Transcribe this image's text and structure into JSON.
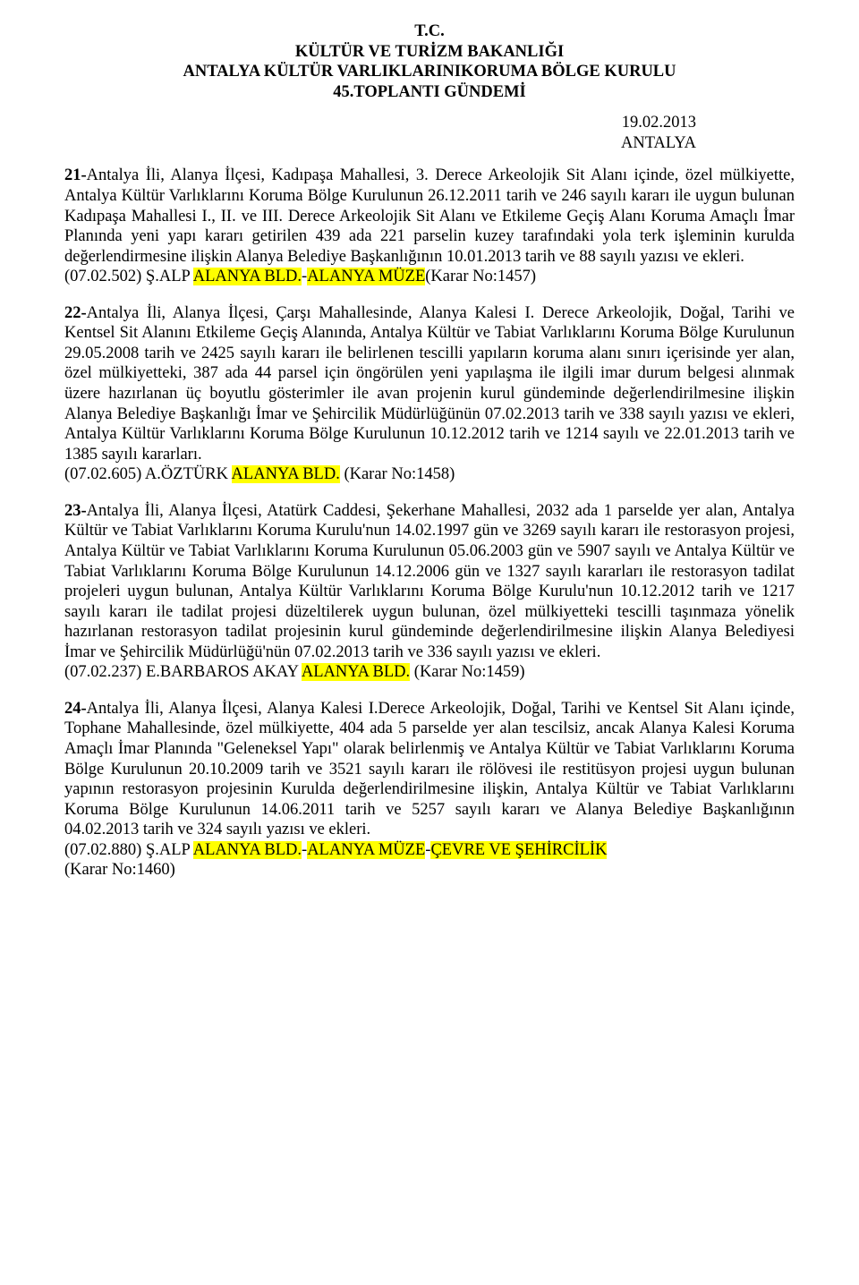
{
  "colors": {
    "highlight": "#ffff00",
    "text": "#000000",
    "background": "#ffffff"
  },
  "typography": {
    "font_family": "Times New Roman",
    "base_fontsize_pt": 14,
    "line_height": 1.22
  },
  "header": {
    "line1": "T.C.",
    "line2": "KÜLTÜR VE TURİZM BAKANLIĞI",
    "line3": "ANTALYA KÜLTÜR VARLIKLARINIKORUMA BÖLGE KURULU",
    "line4": "45.TOPLANTI GÜNDEMİ"
  },
  "date": {
    "line1": "19.02.2013",
    "line2": "ANTALYA"
  },
  "items": {
    "i21": {
      "lead": "21-",
      "body": "Antalya İli, Alanya İlçesi, Kadıpaşa Mahallesi, 3. Derece Arkeolojik Sit Alanı içinde, özel mülkiyette, Antalya Kültür Varlıklarını Koruma Bölge Kurulunun 26.12.2011 tarih ve 246 sayılı kararı ile uygun bulunan Kadıpaşa Mahallesi I., II. ve III. Derece Arkeolojik Sit Alanı ve Etkileme Geçiş Alanı Koruma Amaçlı İmar Planında yeni yapı kararı getirilen 439 ada 221 parselin kuzey tarafındaki yola terk işleminin kurulda değerlendirmesine ilişkin Alanya Belediye Başkanlığının 10.01.2013 tarih ve 88 sayılı yazısı ve ekleri.",
      "ref_pre": "(07.02.502) Ş.ALP ",
      "ref_hl1": "ALANYA BLD.",
      "ref_mid": "-",
      "ref_hl2": "ALANYA MÜZE",
      "ref_post": "(Karar No:1457)"
    },
    "i22": {
      "lead": "22-",
      "body": "Antalya İli, Alanya İlçesi, Çarşı Mahallesinde, Alanya Kalesi I. Derece Arkeolojik, Doğal, Tarihi ve Kentsel Sit Alanını Etkileme Geçiş Alanında, Antalya Kültür ve Tabiat Varlıklarını Koruma Bölge Kurulunun 29.05.2008 tarih ve 2425 sayılı kararı ile belirlenen tescilli yapıların koruma alanı sınırı içerisinde yer alan, özel mülkiyetteki, 387 ada 44 parsel için öngörülen yeni yapılaşma ile ilgili imar durum belgesi alınmak üzere hazırlanan üç boyutlu gösterimler ile avan projenin kurul gündeminde değerlendirilmesine ilişkin Alanya Belediye Başkanlığı İmar ve Şehircilik Müdürlüğünün 07.02.2013 tarih ve 338 sayılı yazısı ve ekleri, Antalya Kültür Varlıklarını Koruma Bölge Kurulunun 10.12.2012 tarih ve 1214 sayılı ve 22.01.2013 tarih ve 1385 sayılı kararları.",
      "ref_pre": "(07.02.605) A.ÖZTÜRK ",
      "ref_hl1": "ALANYA BLD.",
      "ref_post": " (Karar No:1458)"
    },
    "i23": {
      "lead": "23-",
      "body": "Antalya İli, Alanya İlçesi, Atatürk Caddesi, Şekerhane Mahallesi, 2032 ada 1 parselde yer alan, Antalya Kültür ve Tabiat Varlıklarını Koruma Kurulu'nun 14.02.1997 gün ve 3269 sayılı kararı ile restorasyon projesi, Antalya Kültür ve Tabiat Varlıklarını Koruma Kurulunun 05.06.2003 gün ve 5907 sayılı ve Antalya Kültür ve Tabiat Varlıklarını Koruma Bölge Kurulunun 14.12.2006 gün ve 1327 sayılı kararları ile restorasyon tadilat projeleri uygun bulunan, Antalya Kültür Varlıklarını Koruma Bölge Kurulu'nun 10.12.2012 tarih ve 1217 sayılı kararı ile tadilat projesi düzeltilerek uygun bulunan, özel mülkiyetteki tescilli taşınmaza yönelik hazırlanan restorasyon tadilat projesinin kurul gündeminde değerlendirilmesine ilişkin Alanya Belediyesi İmar ve Şehircilik Müdürlüğü'nün 07.02.2013 tarih ve 336 sayılı yazısı ve ekleri.",
      "ref_pre": "(07.02.237)  E.BARBAROS AKAY ",
      "ref_hl1": "ALANYA BLD.",
      "ref_post": " (Karar No:1459)"
    },
    "i24": {
      "lead": "24-",
      "body": "Antalya İli, Alanya İlçesi, Alanya Kalesi I.Derece Arkeolojik, Doğal, Tarihi ve Kentsel Sit Alanı içinde, Tophane Mahallesinde, özel mülkiyette, 404 ada 5 parselde yer alan tescilsiz, ancak Alanya Kalesi Koruma Amaçlı İmar Planında \"Geleneksel Yapı\" olarak belirlenmiş ve Antalya Kültür ve Tabiat Varlıklarını Koruma Bölge Kurulunun 20.10.2009 tarih ve 3521 sayılı kararı ile rölövesi ile restitüsyon projesi uygun bulunan yapının restorasyon projesinin Kurulda değerlendirilmesine ilişkin, Antalya Kültür ve Tabiat Varlıklarını Koruma Bölge Kurulunun 14.06.2011 tarih ve 5257 sayılı kararı ve Alanya Belediye Başkanlığının 04.02.2013 tarih ve 324 sayılı yazısı ve ekleri.",
      "ref_pre": "(07.02.880) Ş.ALP ",
      "ref_hl1": "ALANYA BLD.",
      "ref_mid": "-",
      "ref_hl2": "ALANYA MÜZE",
      "ref_mid2": "-",
      "ref_hl3": "ÇEVRE VE ŞEHİRCİLİK",
      "ref_post2": "(Karar No:1460)"
    }
  }
}
